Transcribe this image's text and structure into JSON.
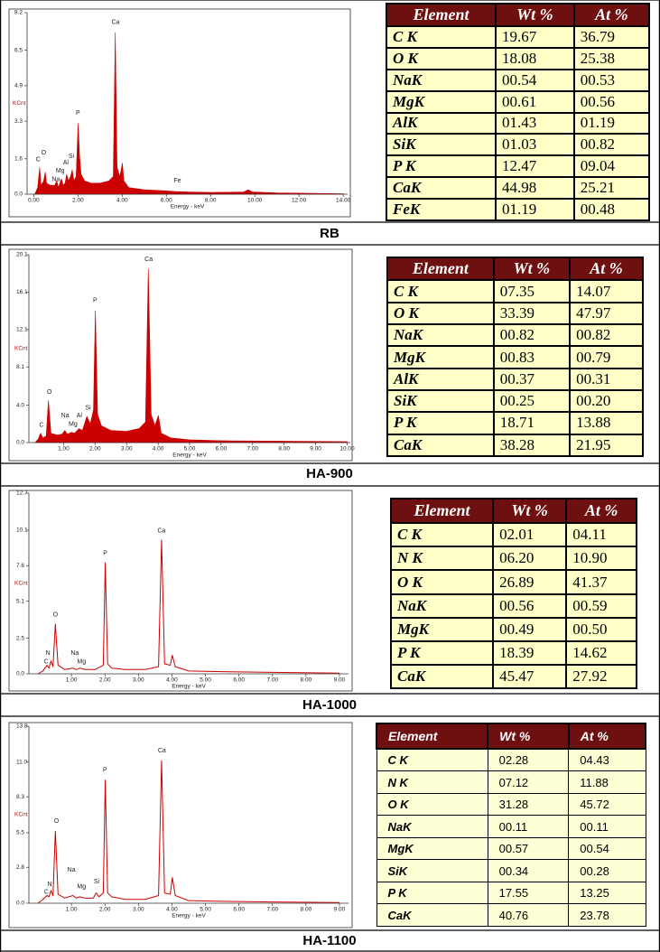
{
  "chart_data": [
    {
      "type": "line",
      "title": "RB",
      "fill": true,
      "color": "#cc0000",
      "x_label": "Energy - keV",
      "y_label": "KCnt",
      "xlim": [
        -0.3,
        14.2
      ],
      "ylim": [
        0,
        8.2
      ],
      "xticks": [
        {
          "value": 0,
          "label": "0.00"
        },
        {
          "value": 2,
          "label": "2.00"
        },
        {
          "value": 4,
          "label": "4.00"
        },
        {
          "value": 6,
          "label": "6.00"
        },
        {
          "value": 8,
          "label": "8.00"
        },
        {
          "value": 10,
          "label": "10.00"
        },
        {
          "value": 12,
          "label": "12.00"
        },
        {
          "value": 14,
          "label": "14.00"
        }
      ],
      "yticks": [
        {
          "value": 0,
          "label": "0.0"
        },
        1.6,
        3.3,
        4.9,
        6.5,
        8.2
      ],
      "x": [
        0.05,
        0.18,
        0.27,
        0.33,
        0.45,
        0.52,
        0.58,
        0.75,
        0.95,
        1.04,
        1.12,
        1.25,
        1.33,
        1.42,
        1.49,
        1.57,
        1.67,
        1.74,
        1.82,
        1.92,
        2.01,
        2.07,
        2.14,
        2.3,
        2.6,
        3.0,
        3.4,
        3.6,
        3.69,
        3.77,
        3.9,
        4.01,
        4.08,
        4.3,
        5.0,
        6.0,
        6.4,
        7.0,
        8.0,
        9.5,
        9.7,
        9.9,
        11.0,
        12.5,
        14.0
      ],
      "values": [
        0.0,
        0.3,
        1.2,
        0.4,
        0.6,
        1.0,
        0.5,
        0.4,
        0.4,
        0.6,
        0.3,
        0.7,
        0.4,
        0.5,
        0.9,
        0.6,
        0.8,
        1.1,
        0.6,
        0.8,
        3.2,
        1.8,
        0.9,
        0.6,
        0.5,
        0.5,
        0.6,
        0.8,
        7.3,
        1.2,
        0.8,
        1.4,
        0.6,
        0.3,
        0.2,
        0.15,
        0.12,
        0.1,
        0.08,
        0.1,
        0.2,
        0.1,
        0.06,
        0.04,
        0.02
      ],
      "annotations": [
        {
          "text": "C",
          "x": 0.2,
          "y": 1.4
        },
        {
          "text": "O",
          "x": 0.45,
          "y": 1.7
        },
        {
          "text": "Na",
          "x": 1.0,
          "y": 0.5
        },
        {
          "text": "Mg",
          "x": 1.2,
          "y": 0.9
        },
        {
          "text": "Al",
          "x": 1.45,
          "y": 1.25
        },
        {
          "text": "Si",
          "x": 1.7,
          "y": 1.55
        },
        {
          "text": "P",
          "x": 2.0,
          "y": 3.5
        },
        {
          "text": "Ca",
          "x": 3.7,
          "y": 7.6
        },
        {
          "text": "Fe",
          "x": 6.5,
          "y": 0.45
        }
      ]
    },
    {
      "type": "line",
      "title": "HA-900",
      "fill": true,
      "color": "#cc0000",
      "x_label": "Energy - keV",
      "y_label": "KCnt",
      "xlim": [
        -0.1,
        10.1
      ],
      "ylim": [
        0,
        20.1
      ],
      "xticks": [
        {
          "value": 1,
          "label": "1.00"
        },
        {
          "value": 2,
          "label": "2.00"
        },
        {
          "value": 3,
          "label": "3.00"
        },
        {
          "value": 4,
          "label": "4.00"
        },
        {
          "value": 5,
          "label": "5.00"
        },
        {
          "value": 6,
          "label": "6.00"
        },
        {
          "value": 7,
          "label": "7.00"
        },
        {
          "value": 8,
          "label": "8.00"
        },
        {
          "value": 9,
          "label": "9.00"
        },
        {
          "value": 10,
          "label": "10.00"
        }
      ],
      "yticks": [
        {
          "value": 0,
          "label": "0.0"
        },
        {
          "value": 4,
          "label": "4.0"
        },
        8.1,
        12.1,
        16.1,
        20.1
      ],
      "x": [
        0.1,
        0.2,
        0.27,
        0.34,
        0.45,
        0.52,
        0.6,
        0.8,
        0.95,
        1.04,
        1.12,
        1.25,
        1.35,
        1.49,
        1.6,
        1.74,
        1.85,
        1.95,
        2.01,
        2.08,
        2.2,
        2.5,
        3.0,
        3.4,
        3.6,
        3.69,
        3.78,
        3.9,
        4.01,
        4.1,
        4.4,
        5.0,
        6.0,
        8.0,
        10.0
      ],
      "values": [
        0.0,
        0.4,
        1.0,
        0.5,
        0.7,
        4.5,
        1.0,
        0.8,
        0.9,
        1.3,
        0.9,
        1.1,
        1.0,
        1.5,
        1.3,
        2.8,
        2.0,
        3.5,
        14.1,
        3.0,
        1.8,
        1.3,
        1.2,
        1.5,
        2.2,
        18.6,
        3.0,
        1.8,
        2.9,
        1.0,
        0.5,
        0.3,
        0.2,
        0.15,
        0.1
      ],
      "annotations": [
        {
          "text": "C",
          "x": 0.3,
          "y": 1.5
        },
        {
          "text": "O",
          "x": 0.55,
          "y": 5.0
        },
        {
          "text": "Na",
          "x": 1.05,
          "y": 2.5
        },
        {
          "text": "Al",
          "x": 1.5,
          "y": 2.5
        },
        {
          "text": "Mg",
          "x": 1.3,
          "y": 1.6
        },
        {
          "text": "Si",
          "x": 1.78,
          "y": 3.3
        },
        {
          "text": "P",
          "x": 2.0,
          "y": 14.8
        },
        {
          "text": "Ca",
          "x": 3.7,
          "y": 19.2
        }
      ]
    },
    {
      "type": "line",
      "title": "HA-1000",
      "fill": false,
      "color": "#cc0000",
      "x_label": "Energy - keV",
      "y_label": "KCnt",
      "xlim": [
        -0.27,
        9.27
      ],
      "ylim": [
        0,
        12.7
      ],
      "xticks": [
        {
          "value": 1,
          "label": "1.00"
        },
        {
          "value": 2,
          "label": "2.00"
        },
        {
          "value": 3,
          "label": "3.00"
        },
        {
          "value": 4,
          "label": "4.00"
        },
        {
          "value": 5,
          "label": "5.00"
        },
        {
          "value": 6,
          "label": "6.00"
        },
        {
          "value": 7,
          "label": "7.00"
        },
        {
          "value": 8,
          "label": "8.00"
        },
        {
          "value": 9,
          "label": "9.00"
        }
      ],
      "yticks": [
        {
          "value": 0,
          "label": "0.0"
        },
        2.5,
        5.1,
        7.6,
        10.1,
        12.7
      ],
      "x": [
        0.0,
        0.15,
        0.27,
        0.33,
        0.39,
        0.45,
        0.52,
        0.6,
        0.8,
        1.04,
        1.15,
        1.25,
        1.4,
        1.7,
        1.95,
        2.01,
        2.08,
        2.2,
        2.6,
        3.2,
        3.6,
        3.69,
        3.78,
        3.95,
        4.01,
        4.1,
        4.5,
        5.5,
        7.0,
        9.0
      ],
      "values": [
        0.0,
        0.2,
        0.6,
        0.4,
        0.9,
        0.5,
        3.5,
        0.6,
        0.3,
        0.4,
        0.3,
        0.4,
        0.3,
        0.3,
        0.6,
        7.8,
        0.7,
        0.4,
        0.3,
        0.3,
        0.5,
        9.4,
        0.7,
        0.6,
        1.3,
        0.5,
        0.2,
        0.15,
        0.1,
        0.05
      ],
      "annotations": [
        {
          "text": "C",
          "x": 0.25,
          "y": 0.6
        },
        {
          "text": "N",
          "x": 0.3,
          "y": 1.2
        },
        {
          "text": "O",
          "x": 0.52,
          "y": 3.9
        },
        {
          "text": "Na",
          "x": 1.1,
          "y": 1.2
        },
        {
          "text": "Mg",
          "x": 1.3,
          "y": 0.6
        },
        {
          "text": "P",
          "x": 2.01,
          "y": 8.2
        },
        {
          "text": "Ca",
          "x": 3.69,
          "y": 9.8
        }
      ]
    },
    {
      "type": "line",
      "title": "HA-1100",
      "fill": false,
      "color": "#cc0000",
      "x_label": "Energy - keV",
      "y_label": "KCnt",
      "xlim": [
        -0.27,
        9.27
      ],
      "ylim": [
        0,
        13.8
      ],
      "xticks": [
        {
          "value": 1,
          "label": "1.00"
        },
        {
          "value": 2,
          "label": "2.00"
        },
        {
          "value": 3,
          "label": "3.00"
        },
        {
          "value": 4,
          "label": "4.00"
        },
        {
          "value": 5,
          "label": "5.00"
        },
        {
          "value": 6,
          "label": "6.00"
        },
        {
          "value": 7,
          "label": "7.00"
        },
        {
          "value": 8,
          "label": "8.00"
        },
        {
          "value": 9,
          "label": "9.00"
        }
      ],
      "yticks": [
        {
          "value": 0,
          "label": "0.0"
        },
        2.8,
        5.5,
        8.3,
        {
          "value": 11,
          "label": "11.0"
        },
        13.8
      ],
      "x": [
        0.0,
        0.15,
        0.27,
        0.33,
        0.39,
        0.45,
        0.52,
        0.6,
        0.8,
        1.04,
        1.15,
        1.25,
        1.4,
        1.65,
        1.74,
        1.82,
        1.95,
        2.01,
        2.08,
        2.2,
        2.6,
        3.2,
        3.6,
        3.69,
        3.78,
        3.95,
        4.01,
        4.1,
        4.5,
        5.5,
        7.0,
        9.0
      ],
      "values": [
        0.0,
        0.3,
        0.6,
        0.5,
        1.0,
        0.6,
        5.6,
        0.7,
        0.4,
        0.6,
        0.4,
        0.5,
        0.4,
        0.4,
        0.8,
        0.5,
        0.8,
        9.6,
        0.8,
        0.5,
        0.3,
        0.3,
        0.6,
        11.1,
        0.8,
        0.7,
        2.0,
        0.6,
        0.2,
        0.15,
        0.1,
        0.05
      ],
      "annotations": [
        {
          "text": "C",
          "x": 0.25,
          "y": 0.6
        },
        {
          "text": "N",
          "x": 0.35,
          "y": 1.2
        },
        {
          "text": "O",
          "x": 0.55,
          "y": 6.1
        },
        {
          "text": "Na",
          "x": 1.0,
          "y": 2.3
        },
        {
          "text": "Mg",
          "x": 1.3,
          "y": 1.0
        },
        {
          "text": "Si",
          "x": 1.75,
          "y": 1.4
        },
        {
          "text": "P",
          "x": 2.0,
          "y": 10.1
        },
        {
          "text": "Ca",
          "x": 3.7,
          "y": 11.6
        }
      ]
    }
  ],
  "tables": [
    {
      "header": [
        "Element",
        "Wt %",
        "At %"
      ],
      "rows": [
        [
          "C K",
          "19.67",
          "36.79"
        ],
        [
          "O K",
          "18.08",
          "25.38"
        ],
        [
          "NaK",
          "00.54",
          "00.53"
        ],
        [
          "MgK",
          "00.61",
          "00.56"
        ],
        [
          "AlK",
          "01.43",
          "01.19"
        ],
        [
          "SiK",
          "01.03",
          "00.82"
        ],
        [
          "P K",
          "12.47",
          "09.04"
        ],
        [
          "CaK",
          "44.98",
          "25.21"
        ],
        [
          "FeK",
          "01.19",
          "00.48"
        ]
      ]
    },
    {
      "header": [
        "Element",
        "Wt %",
        "At %"
      ],
      "rows": [
        [
          "C K",
          "07.35",
          "14.07"
        ],
        [
          "O K",
          "33.39",
          "47.97"
        ],
        [
          "NaK",
          "00.82",
          "00.82"
        ],
        [
          "MgK",
          "00.83",
          "00.79"
        ],
        [
          "AlK",
          "00.37",
          "00.31"
        ],
        [
          "SiK",
          "00.25",
          "00.20"
        ],
        [
          "P K",
          "18.71",
          "13.88"
        ],
        [
          "CaK",
          "38.28",
          "21.95"
        ]
      ]
    },
    {
      "header": [
        "Element",
        "Wt %",
        "At %"
      ],
      "rows": [
        [
          "C K",
          "02.01",
          "04.11"
        ],
        [
          "N K",
          "06.20",
          "10.90"
        ],
        [
          "O K",
          "26.89",
          "41.37"
        ],
        [
          "NaK",
          "00.56",
          "00.59"
        ],
        [
          "MgK",
          "00.49",
          "00.50"
        ],
        [
          "P K",
          "18.39",
          "14.62"
        ],
        [
          "CaK",
          "45.47",
          "27.92"
        ]
      ]
    },
    {
      "header": [
        "Element",
        "Wt %",
        "At %"
      ],
      "rows": [
        [
          "C K",
          "02.28",
          "04.43"
        ],
        [
          "N K",
          "07.12",
          "11.88"
        ],
        [
          "O K",
          "31.28",
          "45.72"
        ],
        [
          "NaK",
          "00.11",
          "00.11"
        ],
        [
          "MgK",
          "00.57",
          "00.54"
        ],
        [
          "SiK",
          "00.34",
          "00.28"
        ],
        [
          "P K",
          "17.55",
          "13.25"
        ],
        [
          "CaK",
          "40.76",
          "23.78"
        ]
      ]
    }
  ]
}
